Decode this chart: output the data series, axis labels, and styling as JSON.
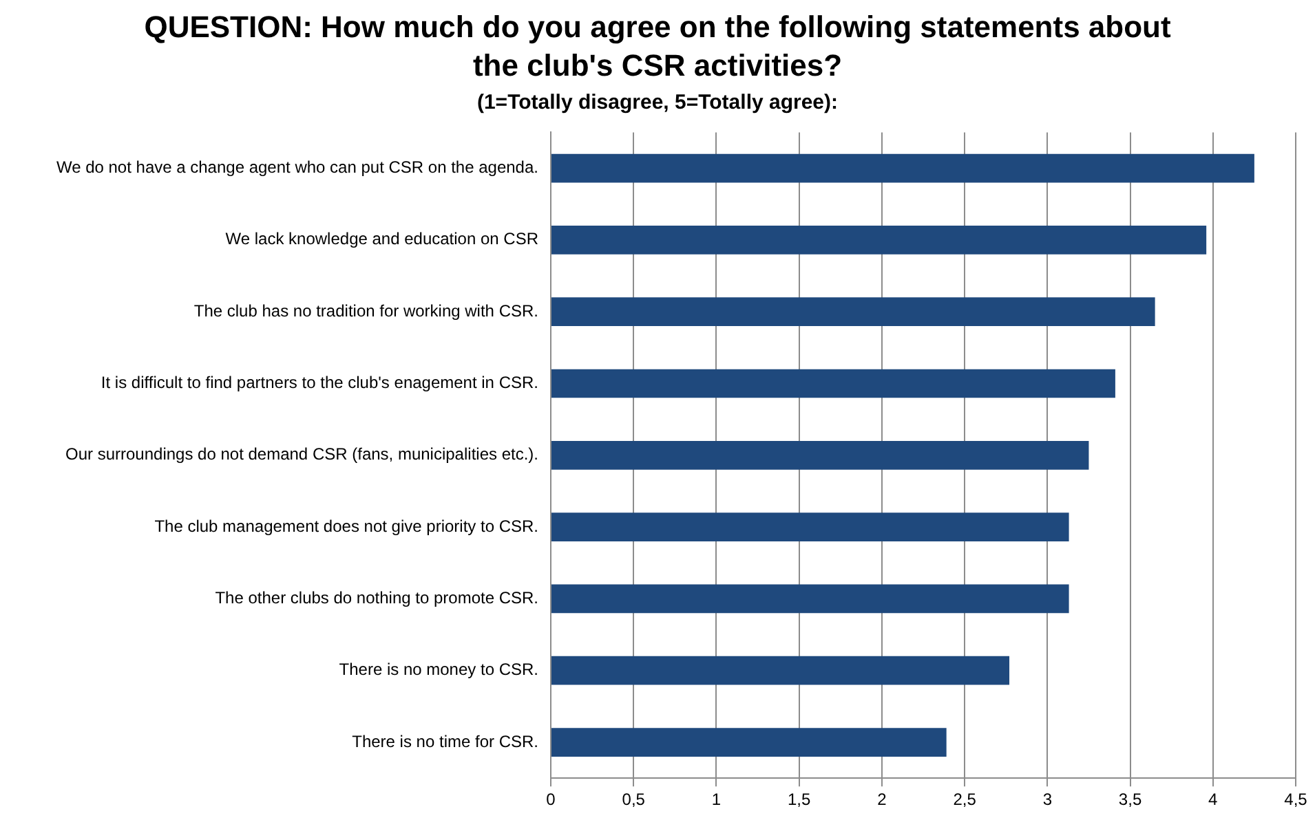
{
  "chart_data": {
    "type": "bar",
    "orientation": "horizontal",
    "title": "QUESTION: How much do you agree on the following statements about the club's CSR activities?",
    "subtitle": "(1=Totally disagree, 5=Totally agree):",
    "categories": [
      "We do not have a change agent who can put CSR on the agenda.",
      "We lack knowledge and education on CSR",
      "The club has no tradition for working with CSR.",
      "It is difficult to find partners to the club's enagement in CSR.",
      "Our surroundings do not demand CSR (fans, municipalities etc.).",
      "The club management does not give priority to CSR.",
      "The other clubs do nothing to promote CSR.",
      "There is no money to CSR.",
      "There is no time for CSR."
    ],
    "values": [
      4.25,
      3.96,
      3.65,
      3.41,
      3.25,
      3.13,
      3.13,
      2.77,
      2.39
    ],
    "color": "#1f497d",
    "xlim": [
      0,
      4.5
    ],
    "xticks": [
      0,
      {
        "value": 0.5,
        "label": "0,5"
      },
      1,
      {
        "value": 1.5,
        "label": "1,5"
      },
      2,
      {
        "value": 2.5,
        "label": "2,5"
      },
      3,
      {
        "value": 3.5,
        "label": "3,5"
      },
      4,
      {
        "value": 4.5,
        "label": "4,5"
      }
    ],
    "grid": "x",
    "legend": false
  }
}
